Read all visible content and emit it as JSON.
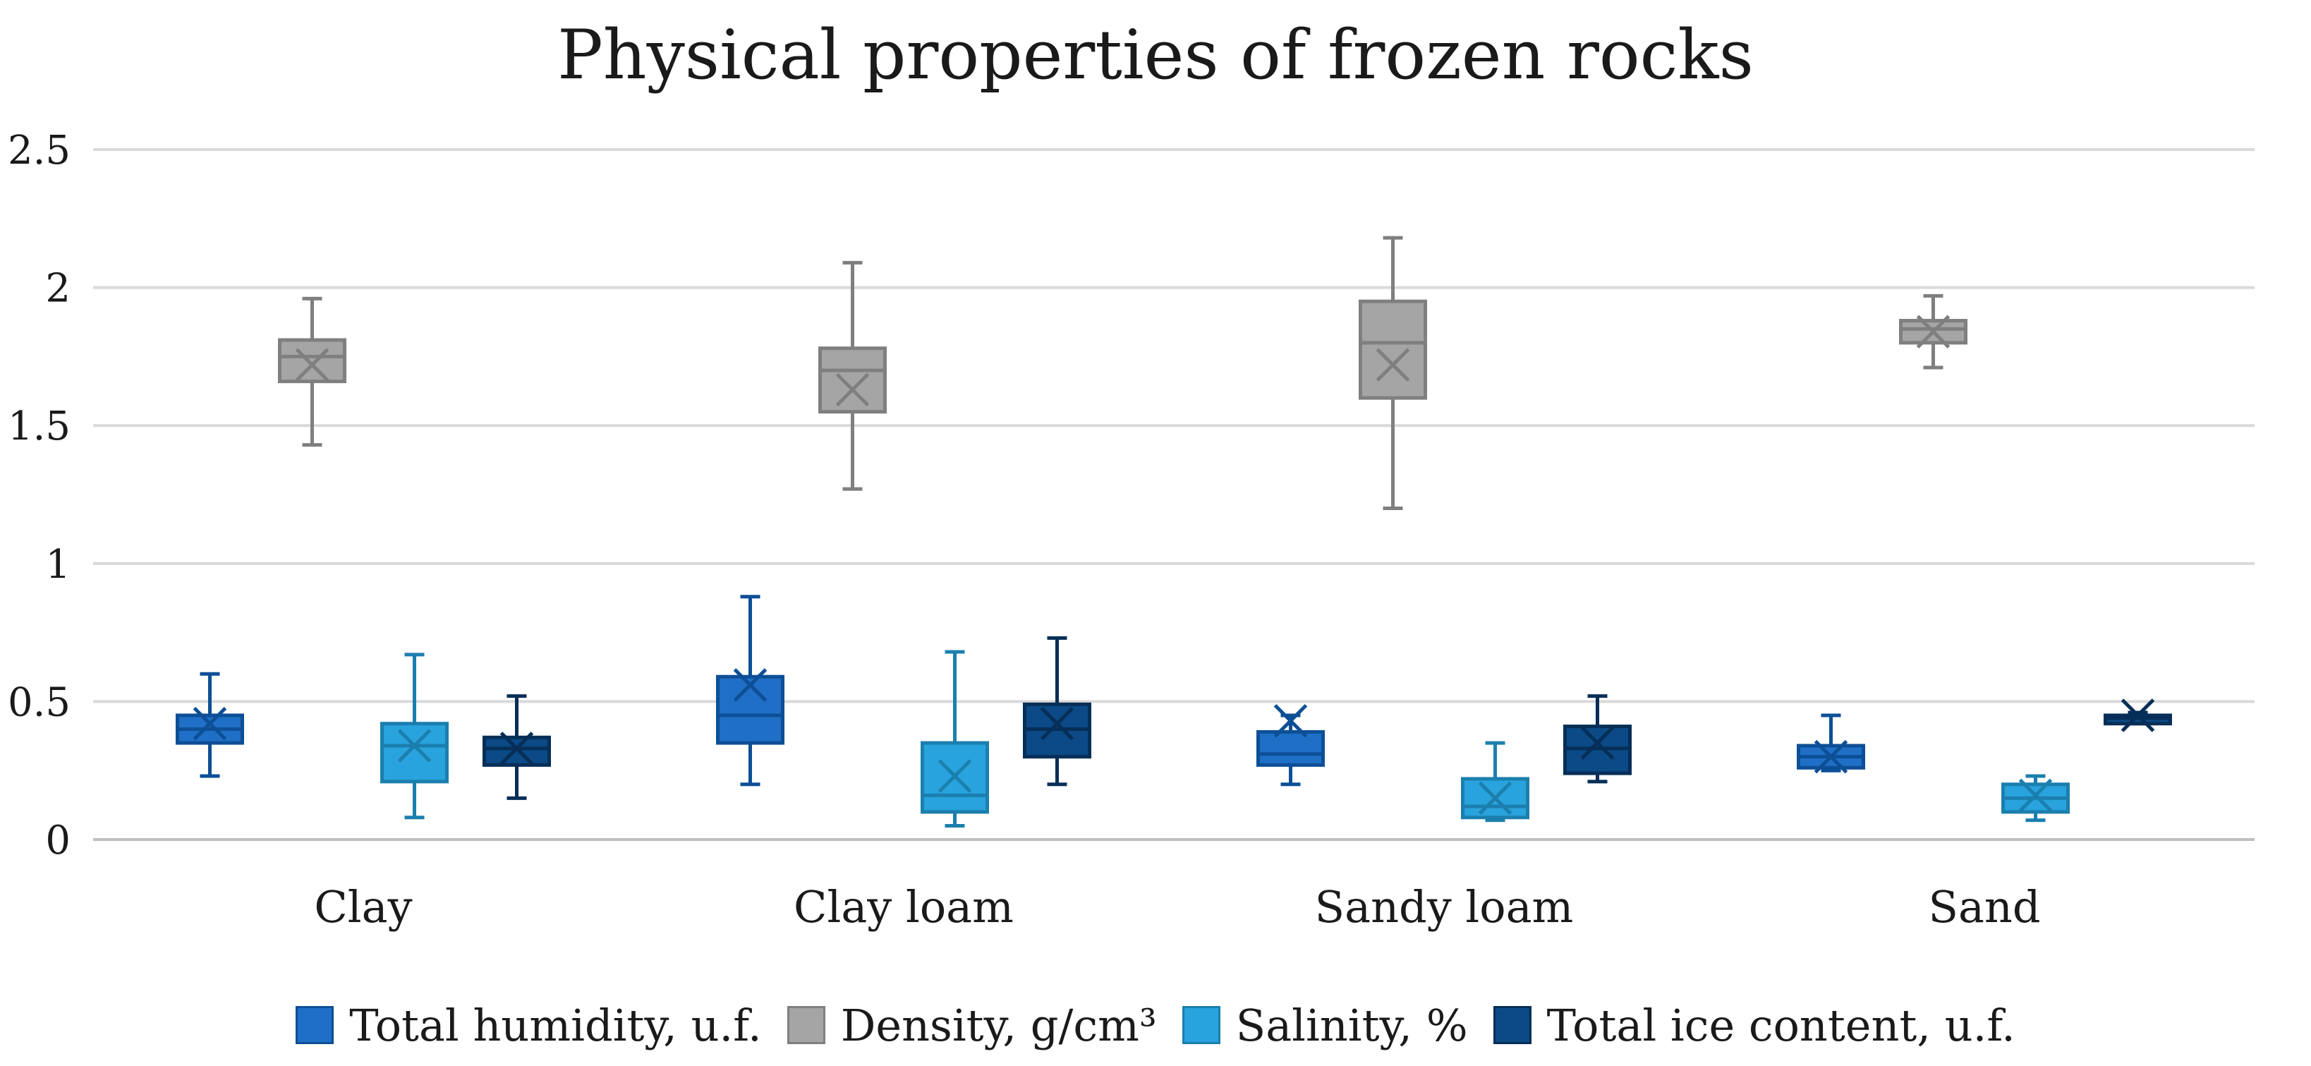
{
  "chart_data": {
    "type": "box",
    "title": "Physical properties of frozen rocks",
    "xlabel": "",
    "ylabel": "",
    "ylim": [
      0,
      2.5
    ],
    "yticks": [
      {
        "value": 0,
        "label": "0"
      },
      {
        "value": 0.5,
        "label": "0.5"
      },
      {
        "value": 1,
        "label": "1"
      },
      {
        "value": 1.5,
        "label": "1.5"
      },
      {
        "value": 2,
        "label": "2"
      },
      {
        "value": 2.5,
        "label": "2.5"
      }
    ],
    "grid": true,
    "legend_position": "bottom",
    "categories": [
      "Clay",
      "Clay loam",
      "Sandy loam",
      "Sand"
    ],
    "series": [
      {
        "name": "Total humidity, u.f.",
        "color": "#1f6fc6",
        "stroke": "#0d4f96",
        "boxes": [
          {
            "min": 0.23,
            "q1": 0.35,
            "median": 0.4,
            "q3": 0.45,
            "max": 0.6,
            "mean": 0.42
          },
          {
            "min": 0.2,
            "q1": 0.35,
            "median": 0.45,
            "q3": 0.59,
            "max": 0.88,
            "mean": 0.56
          },
          {
            "min": 0.2,
            "q1": 0.27,
            "median": 0.31,
            "q3": 0.39,
            "max": 0.45,
            "mean": 0.43
          },
          {
            "min": 0.25,
            "q1": 0.26,
            "median": 0.3,
            "q3": 0.34,
            "max": 0.45,
            "mean": 0.3
          }
        ]
      },
      {
        "name": "Density, g/cm³",
        "color": "#a5a5a5",
        "stroke": "#7f7f7f",
        "boxes": [
          {
            "min": 1.43,
            "q1": 1.66,
            "median": 1.75,
            "q3": 1.81,
            "max": 1.96,
            "mean": 1.72
          },
          {
            "min": 1.27,
            "q1": 1.55,
            "median": 1.7,
            "q3": 1.78,
            "max": 2.09,
            "mean": 1.63
          },
          {
            "min": 1.2,
            "q1": 1.6,
            "median": 1.8,
            "q3": 1.95,
            "max": 2.18,
            "mean": 1.72
          },
          {
            "min": 1.71,
            "q1": 1.8,
            "median": 1.85,
            "q3": 1.88,
            "max": 1.97,
            "mean": 1.84
          }
        ]
      },
      {
        "name": "Salinity, %",
        "color": "#29a3dd",
        "stroke": "#1b7fae",
        "boxes": [
          {
            "min": 0.08,
            "q1": 0.21,
            "median": 0.34,
            "q3": 0.42,
            "max": 0.67,
            "mean": 0.34
          },
          {
            "min": 0.05,
            "q1": 0.1,
            "median": 0.16,
            "q3": 0.35,
            "max": 0.68,
            "mean": 0.23
          },
          {
            "min": 0.07,
            "q1": 0.08,
            "median": 0.12,
            "q3": 0.22,
            "max": 0.35,
            "mean": 0.15
          },
          {
            "min": 0.07,
            "q1": 0.1,
            "median": 0.15,
            "q3": 0.2,
            "max": 0.23,
            "mean": 0.16
          }
        ]
      },
      {
        "name": "Total ice content, u.f.",
        "color": "#0b4a86",
        "stroke": "#062e57",
        "boxes": [
          {
            "min": 0.15,
            "q1": 0.27,
            "median": 0.33,
            "q3": 0.37,
            "max": 0.52,
            "mean": 0.33
          },
          {
            "min": 0.2,
            "q1": 0.3,
            "median": 0.4,
            "q3": 0.49,
            "max": 0.73,
            "mean": 0.42
          },
          {
            "min": 0.21,
            "q1": 0.24,
            "median": 0.33,
            "q3": 0.41,
            "max": 0.52,
            "mean": 0.35
          },
          {
            "min": 0.42,
            "q1": 0.42,
            "median": 0.44,
            "q3": 0.45,
            "max": 0.46,
            "mean": 0.45
          }
        ]
      }
    ]
  }
}
